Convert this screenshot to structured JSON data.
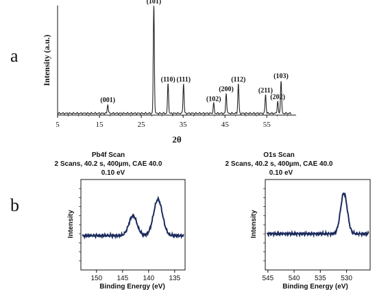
{
  "figure": {
    "panel_a_label": "a",
    "panel_b_label": "b"
  },
  "chart_data": [
    {
      "id": "xrd",
      "type": "line",
      "title": "",
      "xlabel": "2θ",
      "ylabel": "Intensity (a.u.)",
      "xlim": [
        5,
        62
      ],
      "ylim": [
        0,
        100
      ],
      "x_ticks": [
        5,
        15,
        25,
        35,
        45,
        55
      ],
      "grid": false,
      "series_color": "#222222",
      "peaks": [
        {
          "label": "(001)",
          "x": 17.0,
          "height": 8
        },
        {
          "label": "(101)",
          "x": 28.0,
          "height": 98
        },
        {
          "label": "(110)",
          "x": 31.4,
          "height": 27
        },
        {
          "label": "(111)",
          "x": 35.1,
          "height": 27
        },
        {
          "label": "(102)",
          "x": 42.3,
          "height": 9
        },
        {
          "label": "(200)",
          "x": 45.3,
          "height": 18
        },
        {
          "label": "(112)",
          "x": 48.2,
          "height": 27
        },
        {
          "label": "(211)",
          "x": 54.7,
          "height": 17
        },
        {
          "label": "(202)",
          "x": 57.6,
          "height": 11
        },
        {
          "label": "(103)",
          "x": 58.4,
          "height": 30
        }
      ]
    },
    {
      "id": "pb4f",
      "type": "line",
      "title": "Pb4f Scan",
      "subtitle_1": "2 Scans,  40.2 s,  400µm,  CAE 40.0",
      "subtitle_2": "0.10 eV",
      "xlabel": "Binding Energy (eV)",
      "ylabel": "Intensity",
      "xlim": [
        153,
        133
      ],
      "ylim": [
        0,
        100
      ],
      "x_ticks": [
        150,
        145,
        140,
        135
      ],
      "x_reversed": true,
      "series_color": "#1b2a5c",
      "baseline": 38,
      "peaks": [
        {
          "x": 143.0,
          "height": 60,
          "width": 1.1
        },
        {
          "x": 138.2,
          "height": 78,
          "width": 1.2
        }
      ]
    },
    {
      "id": "o1s",
      "type": "line",
      "title": "O1s Scan",
      "subtitle_1": "2 Scans,  40.2 s,  400µm,  CAE 40.0",
      "subtitle_2": "0.10 eV",
      "xlabel": "Binding Energy (eV)",
      "ylabel": "Intensity",
      "xlim": [
        545.5,
        525.5
      ],
      "ylim": [
        0,
        100
      ],
      "x_ticks": [
        545,
        540,
        535,
        530
      ],
      "x_reversed": true,
      "series_color": "#1b2a5c",
      "baseline": 40,
      "peaks": [
        {
          "x": 530.5,
          "height": 85,
          "width": 0.9
        }
      ]
    }
  ]
}
